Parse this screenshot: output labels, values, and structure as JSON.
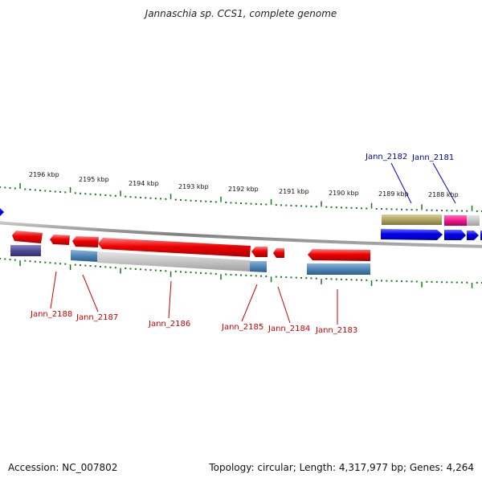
{
  "title": "Jannaschia sp. CCS1, complete genome",
  "footer": {
    "accession": "Accession: NC_007802",
    "summary": "Topology: circular; Length: 4,317,977 bp; Genes: 4,264"
  },
  "ruler": {
    "tick_labels": [
      "2196 kbp",
      "2195 kbp",
      "2194 kbp",
      "2193 kbp",
      "2192 kbp",
      "2191 kbp",
      "2190 kbp",
      "2189 kbp",
      "2188 kbp"
    ]
  },
  "gene_labels": {
    "top": [
      "Jann_2182",
      "Jann_2181"
    ],
    "bottom": [
      "Jann_2188",
      "Jann_2187",
      "Jann_2186",
      "Jann_2185",
      "Jann_2184",
      "Jann_2183"
    ]
  },
  "colors": {
    "reverse_gene": "#ee0000",
    "forward_gene": "#0000ee",
    "ruler_tick": "#1a7a1a",
    "label_reverse": "#cc0000",
    "label_forward": "#000099"
  }
}
